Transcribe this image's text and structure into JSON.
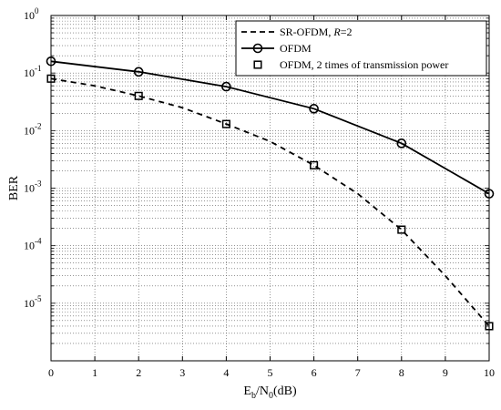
{
  "chart_data": {
    "type": "line",
    "yscale": "log",
    "xlabel": {
      "main": "E",
      "sub1": "b",
      "mid": "/N",
      "sub2": "0",
      "tail": "(dB)"
    },
    "ylabel": "BER",
    "xlim": [
      0,
      10
    ],
    "ylim": [
      1e-06,
      1
    ],
    "x_ticks": [
      0,
      1,
      2,
      3,
      4,
      5,
      6,
      7,
      8,
      9,
      10
    ],
    "y_ticks": [
      {
        "value": 1,
        "base": "10",
        "exp": "0"
      },
      {
        "value": 0.1,
        "base": "10",
        "exp": "-1"
      },
      {
        "value": 0.01,
        "base": "10",
        "exp": "-2"
      },
      {
        "value": 0.001,
        "base": "10",
        "exp": "-3"
      },
      {
        "value": 0.0001,
        "base": "10",
        "exp": "-4"
      },
      {
        "value": 1e-05,
        "base": "10",
        "exp": "-5"
      }
    ],
    "grid": true,
    "grid_style": "dotted",
    "legend_position": "top-right",
    "series": [
      {
        "name": "SR-OFDM, R=2",
        "legend": {
          "prefix": "SR-OFDM, ",
          "italic": "R",
          "suffix": "=2"
        },
        "style": "dashed",
        "marker": "none",
        "x": [
          0,
          1,
          2,
          3,
          4,
          5,
          6,
          7,
          8,
          9,
          10
        ],
        "y": [
          0.08,
          0.06,
          0.04,
          0.025,
          0.013,
          0.0065,
          0.0025,
          0.0008,
          0.00019,
          3e-05,
          4e-06
        ]
      },
      {
        "name": "OFDM",
        "legend": {
          "prefix": "OFDM",
          "italic": "",
          "suffix": ""
        },
        "style": "solid",
        "marker": "circle",
        "x": [
          0,
          2,
          4,
          6,
          8,
          10
        ],
        "y": [
          0.16,
          0.105,
          0.058,
          0.024,
          0.006,
          0.0008
        ]
      },
      {
        "name": "OFDM, 2 times of transmission power",
        "legend": {
          "prefix": "OFDM, 2 times of transmission power",
          "italic": "",
          "suffix": ""
        },
        "style": "none",
        "marker": "square",
        "x": [
          0,
          2,
          4,
          6,
          8,
          10
        ],
        "y": [
          0.08,
          0.04,
          0.013,
          0.0025,
          0.00019,
          4e-06
        ]
      }
    ]
  }
}
